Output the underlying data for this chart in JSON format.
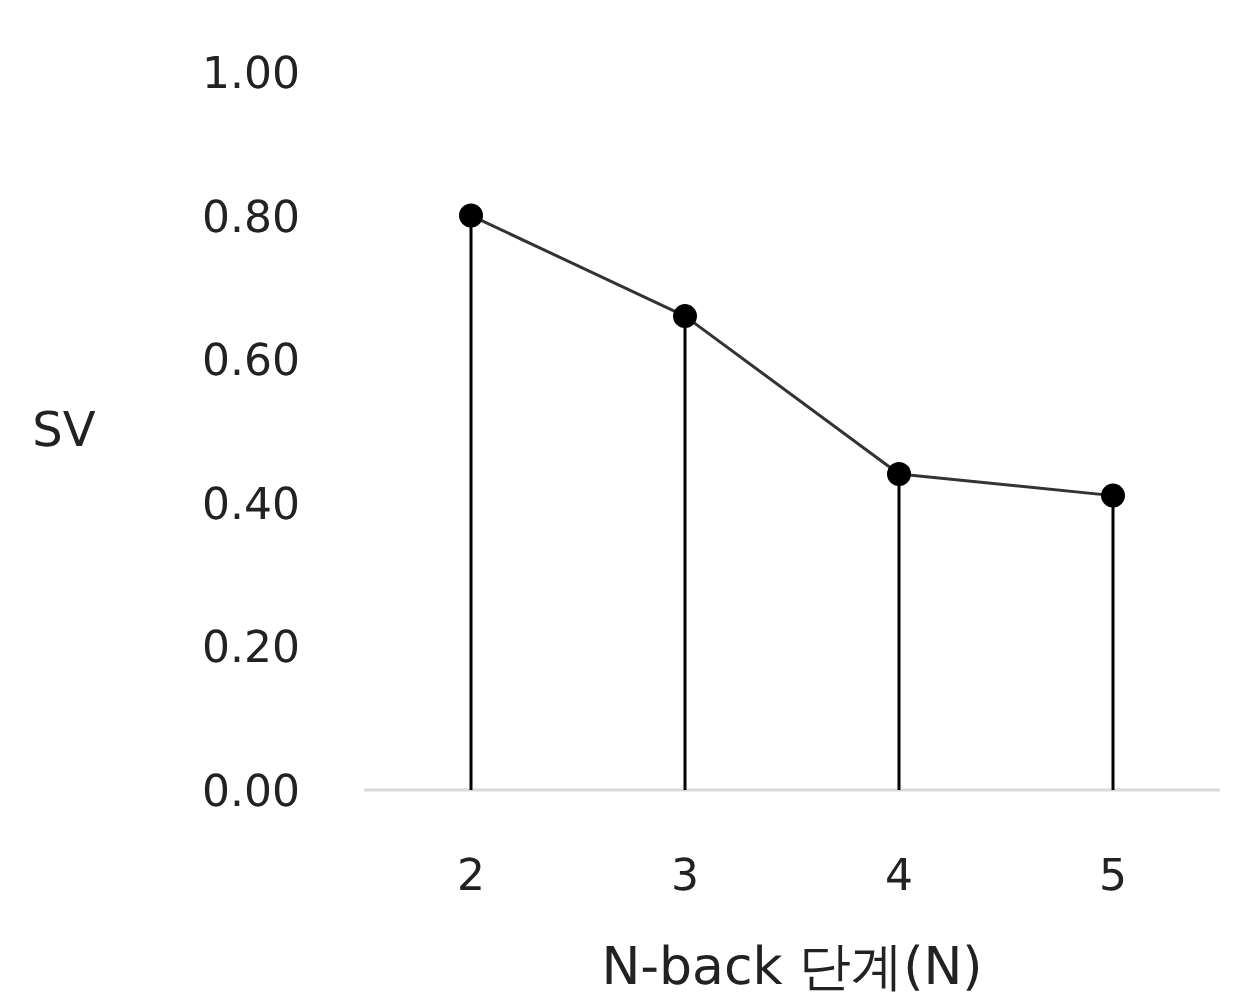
{
  "chart_data": {
    "type": "lollipop",
    "xlabel": "N-back 단계(N)",
    "ylabel": "SV",
    "categories": [
      "2",
      "3",
      "4",
      "5"
    ],
    "ylim": [
      0,
      1
    ],
    "yticks": [
      {
        "value": 0,
        "label": "0.00"
      },
      {
        "value": 0.2,
        "label": "0.20"
      },
      {
        "value": 0.4,
        "label": "0.40"
      },
      {
        "value": 0.6,
        "label": "0.60"
      },
      {
        "value": 0.8,
        "label": "0.80"
      },
      {
        "value": 1,
        "label": "1.00"
      }
    ],
    "series": [
      {
        "color": "#000000",
        "marker": "circle",
        "values": [
          0.8,
          0.66,
          0.44,
          0.41
        ]
      },
      {
        "type": "line",
        "color": "#333333",
        "marker": "none",
        "values": [
          0.8,
          0.66,
          0.44,
          0.41
        ]
      }
    ]
  }
}
